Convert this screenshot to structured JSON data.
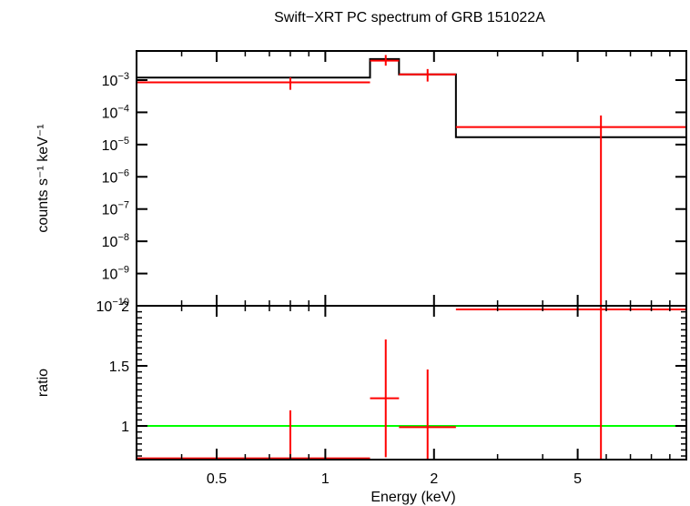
{
  "chart_data": [
    {
      "type": "line",
      "panel": "spectrum",
      "title": "Swift−XRT PC spectrum of GRB 151022A",
      "ylabel": "counts s⁻¹ keV⁻¹",
      "yscale": "log",
      "ylim": [
        1e-10,
        0.008
      ],
      "xscale": "log",
      "xlim": [
        0.3,
        10
      ],
      "y_ticks": [
        {
          "value": 0.001,
          "base": "10",
          "exp": "−3"
        },
        {
          "value": 0.0001,
          "base": "10",
          "exp": "−4"
        },
        {
          "value": 1e-05,
          "base": "10",
          "exp": "−5"
        },
        {
          "value": 1e-06,
          "base": "10",
          "exp": "−6"
        },
        {
          "value": 1e-07,
          "base": "10",
          "exp": "−7"
        },
        {
          "value": 1e-08,
          "base": "10",
          "exp": "−8"
        },
        {
          "value": 1e-09,
          "base": "10",
          "exp": "−9"
        },
        {
          "value": 1e-10,
          "base": "10",
          "exp": "−10"
        }
      ],
      "series": [
        {
          "color": "#ff0000",
          "points": [
            {
              "x": 0.8,
              "xlo": 0.3,
              "xhi": 1.33,
              "y": 0.00085,
              "ylo": 0.0005,
              "yhi": 0.0012
            },
            {
              "x": 1.47,
              "xlo": 1.33,
              "xhi": 1.6,
              "y": 0.004,
              "ylo": 0.0028,
              "yhi": 0.006
            },
            {
              "x": 1.92,
              "xlo": 1.6,
              "xhi": 2.3,
              "y": 0.0015,
              "ylo": 0.0009,
              "yhi": 0.0022
            },
            {
              "x": 5.8,
              "xlo": 2.3,
              "xhi": 10,
              "y": 3.5e-05,
              "ylo": 1e-10,
              "yhi": 8e-05
            }
          ]
        },
        {
          "color": "#000000",
          "step_edges": [
            0.3,
            1.33,
            1.6,
            2.3,
            10
          ],
          "step_values": [
            0.0012,
            0.0045,
            0.0015,
            1.7e-05
          ]
        }
      ]
    },
    {
      "type": "line",
      "panel": "ratio",
      "xlabel": "Energy (keV)",
      "ylabel": "ratio",
      "xscale": "log",
      "xlim": [
        0.3,
        10
      ],
      "ylim": [
        0.72,
        2.0
      ],
      "x_ticks": [
        {
          "value": 0.5,
          "label": "0.5"
        },
        {
          "value": 1,
          "label": "1"
        },
        {
          "value": 2,
          "label": "2"
        },
        {
          "value": 5,
          "label": "5"
        }
      ],
      "y_ticks": [
        {
          "value": 1,
          "label": "1"
        },
        {
          "value": 1.5,
          "label": "1.5"
        },
        {
          "value": 2,
          "label": "2"
        }
      ],
      "reference_line": {
        "y": 1,
        "color": "#00ff00"
      },
      "series": [
        {
          "color": "#ff0000",
          "points": [
            {
              "x": 0.8,
              "xlo": 0.3,
              "xhi": 1.33,
              "y": 0.73,
              "ylo": 0.72,
              "yhi": 1.13
            },
            {
              "x": 1.47,
              "xlo": 1.33,
              "xhi": 1.6,
              "y": 1.23,
              "ylo": 0.74,
              "yhi": 1.72
            },
            {
              "x": 1.92,
              "xlo": 1.6,
              "xhi": 2.3,
              "y": 0.99,
              "ylo": 0.72,
              "yhi": 1.47
            },
            {
              "x": 5.8,
              "xlo": 2.3,
              "xhi": 10,
              "y": 1.97,
              "ylo": 0.72,
              "yhi": 2.0
            }
          ]
        }
      ]
    }
  ]
}
